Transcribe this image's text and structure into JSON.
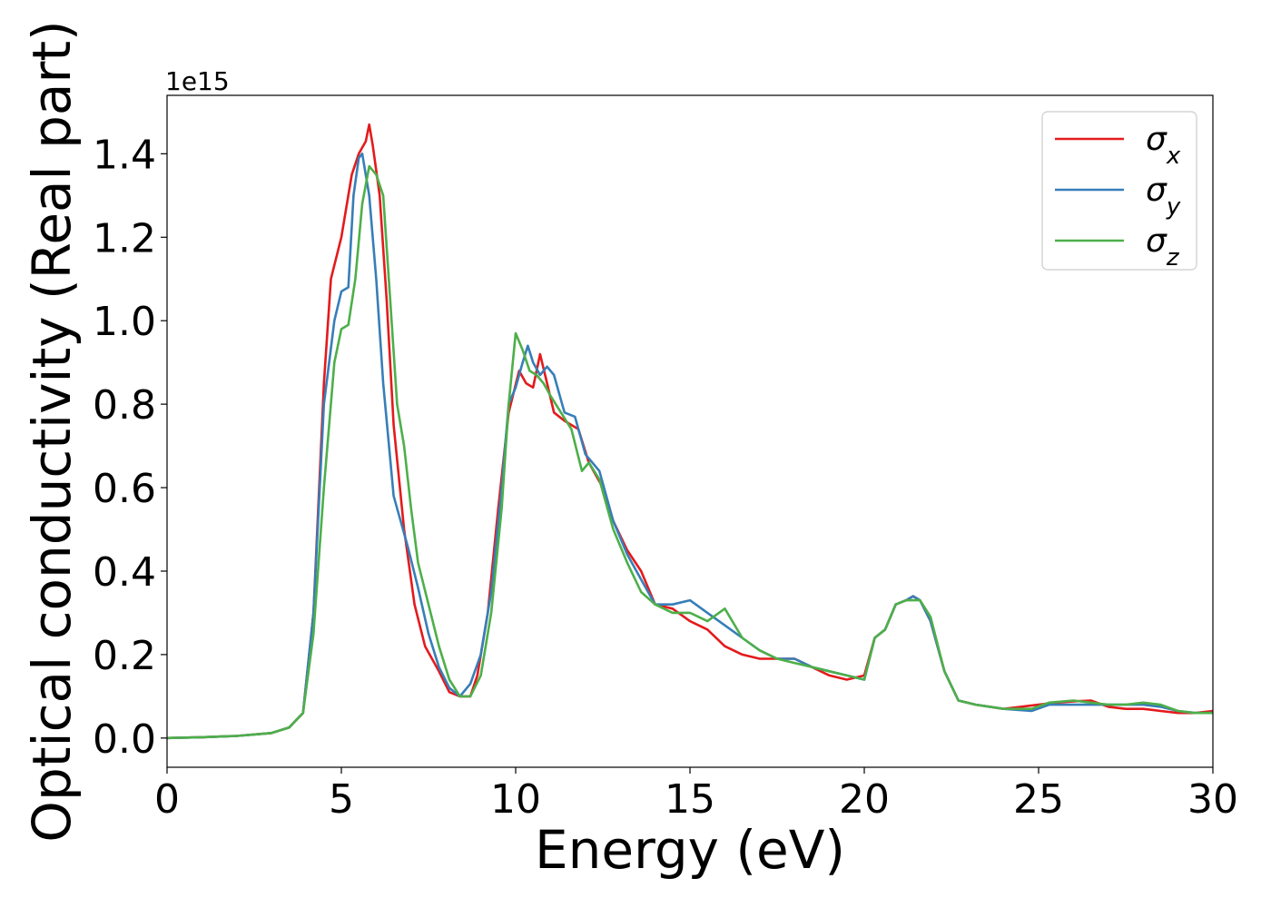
{
  "chart_data": {
    "type": "line",
    "xlabel": "Energy (eV)",
    "ylabel": "Optical conductivity (Real part)",
    "y_offset_text": "1e15",
    "xlim": [
      0,
      30
    ],
    "ylim": [
      -0.07,
      1.54
    ],
    "x_ticks": [
      0,
      5,
      10,
      15,
      20,
      25,
      30
    ],
    "x_tick_labels": [
      "0",
      "5",
      "10",
      "15",
      "20",
      "25",
      "30"
    ],
    "y_ticks": [
      0.0,
      0.2,
      0.4,
      0.6,
      0.8,
      1.0,
      1.2,
      1.4
    ],
    "y_tick_labels": [
      "0.0",
      "0.2",
      "0.4",
      "0.6",
      "0.8",
      "1.0",
      "1.2",
      "1.4"
    ],
    "grid": false,
    "legend_position": "top-right",
    "series": [
      {
        "name": "σx",
        "symbol": "σ",
        "subscript": "x",
        "color": "#e41a1c",
        "x": [
          0,
          1,
          2,
          3,
          3.5,
          3.9,
          4.2,
          4.5,
          4.7,
          5.0,
          5.3,
          5.5,
          5.7,
          5.8,
          5.9,
          6.1,
          6.3,
          6.5,
          6.8,
          7.1,
          7.4,
          7.8,
          8.1,
          8.4,
          8.7,
          8.9,
          9.2,
          9.5,
          9.8,
          10.1,
          10.3,
          10.5,
          10.7,
          10.9,
          11.1,
          11.4,
          11.8,
          12.1,
          12.5,
          12.8,
          13.2,
          13.6,
          14.0,
          14.5,
          15.0,
          15.5,
          16.0,
          16.5,
          17.0,
          17.5,
          18.0,
          18.5,
          19.0,
          19.5,
          20.0,
          20.3,
          20.6,
          20.9,
          21.2,
          21.4,
          21.6,
          21.9,
          22.3,
          22.7,
          23.2,
          24.0,
          25.0,
          25.5,
          26.0,
          26.5,
          27.0,
          27.5,
          28.0,
          28.5,
          29.0,
          29.5,
          30.0
        ],
        "values": [
          0.0,
          0.002,
          0.005,
          0.012,
          0.025,
          0.06,
          0.3,
          0.85,
          1.1,
          1.2,
          1.35,
          1.4,
          1.43,
          1.47,
          1.42,
          1.3,
          1.05,
          0.75,
          0.5,
          0.32,
          0.22,
          0.16,
          0.11,
          0.1,
          0.1,
          0.15,
          0.3,
          0.55,
          0.78,
          0.88,
          0.85,
          0.84,
          0.92,
          0.85,
          0.78,
          0.76,
          0.74,
          0.66,
          0.6,
          0.52,
          0.45,
          0.4,
          0.32,
          0.31,
          0.28,
          0.26,
          0.22,
          0.2,
          0.19,
          0.19,
          0.19,
          0.17,
          0.15,
          0.14,
          0.15,
          0.24,
          0.26,
          0.32,
          0.33,
          0.34,
          0.33,
          0.28,
          0.16,
          0.09,
          0.08,
          0.07,
          0.08,
          0.085,
          0.088,
          0.09,
          0.075,
          0.07,
          0.07,
          0.065,
          0.06,
          0.06,
          0.065
        ]
      },
      {
        "name": "σy",
        "symbol": "σ",
        "subscript": "y",
        "color": "#377eb8",
        "x": [
          0,
          1,
          2,
          3,
          3.5,
          3.9,
          4.2,
          4.5,
          4.8,
          5.0,
          5.2,
          5.35,
          5.5,
          5.6,
          5.8,
          6.0,
          6.2,
          6.5,
          6.7,
          6.9,
          7.2,
          7.5,
          7.8,
          8.1,
          8.4,
          8.7,
          9.0,
          9.3,
          9.6,
          9.8,
          10.0,
          10.2,
          10.35,
          10.5,
          10.7,
          10.9,
          11.1,
          11.4,
          11.7,
          12.0,
          12.4,
          12.8,
          13.2,
          13.6,
          14.0,
          14.5,
          15.0,
          15.5,
          16.0,
          16.5,
          17.0,
          17.5,
          18.0,
          18.5,
          19.0,
          19.5,
          20.0,
          20.3,
          20.6,
          20.9,
          21.2,
          21.4,
          21.6,
          21.9,
          22.3,
          22.7,
          23.2,
          24.0,
          24.8,
          25.3,
          26.0,
          26.5,
          27.0,
          27.5,
          28.0,
          28.5,
          29.0,
          29.5,
          30.0
        ],
        "values": [
          0.0,
          0.002,
          0.005,
          0.012,
          0.025,
          0.06,
          0.3,
          0.8,
          1.0,
          1.07,
          1.08,
          1.3,
          1.39,
          1.4,
          1.3,
          1.1,
          0.85,
          0.58,
          0.52,
          0.46,
          0.36,
          0.25,
          0.17,
          0.12,
          0.1,
          0.13,
          0.2,
          0.35,
          0.6,
          0.8,
          0.84,
          0.9,
          0.94,
          0.9,
          0.87,
          0.89,
          0.87,
          0.78,
          0.77,
          0.68,
          0.64,
          0.52,
          0.44,
          0.38,
          0.32,
          0.32,
          0.33,
          0.3,
          0.27,
          0.24,
          0.21,
          0.19,
          0.19,
          0.17,
          0.16,
          0.15,
          0.14,
          0.24,
          0.26,
          0.32,
          0.33,
          0.34,
          0.33,
          0.28,
          0.16,
          0.09,
          0.08,
          0.07,
          0.065,
          0.08,
          0.08,
          0.08,
          0.08,
          0.08,
          0.08,
          0.075,
          0.065,
          0.06,
          0.06
        ]
      },
      {
        "name": "σz",
        "symbol": "σ",
        "subscript": "z",
        "color": "#4daf4a",
        "x": [
          0,
          1,
          2,
          3,
          3.5,
          3.9,
          4.2,
          4.5,
          4.8,
          5.0,
          5.2,
          5.4,
          5.6,
          5.8,
          6.0,
          6.2,
          6.4,
          6.6,
          6.8,
          7.0,
          7.2,
          7.5,
          7.8,
          8.1,
          8.4,
          8.7,
          9.0,
          9.3,
          9.6,
          9.8,
          10.0,
          10.2,
          10.4,
          10.6,
          10.8,
          11.0,
          11.3,
          11.6,
          11.9,
          12.1,
          12.4,
          12.8,
          13.2,
          13.6,
          14.0,
          14.5,
          15.0,
          15.5,
          16.0,
          16.5,
          17.0,
          17.5,
          18.0,
          18.5,
          19.0,
          19.5,
          20.0,
          20.3,
          20.6,
          20.9,
          21.2,
          21.4,
          21.6,
          21.9,
          22.3,
          22.7,
          23.2,
          24.0,
          24.8,
          25.3,
          26.0,
          26.5,
          27.0,
          27.5,
          28.0,
          28.5,
          29.0,
          29.5,
          30.0
        ],
        "values": [
          0.0,
          0.002,
          0.005,
          0.012,
          0.025,
          0.06,
          0.25,
          0.6,
          0.9,
          0.98,
          0.99,
          1.1,
          1.28,
          1.37,
          1.35,
          1.3,
          1.05,
          0.8,
          0.7,
          0.55,
          0.42,
          0.32,
          0.22,
          0.14,
          0.1,
          0.1,
          0.15,
          0.3,
          0.55,
          0.8,
          0.97,
          0.93,
          0.88,
          0.87,
          0.85,
          0.82,
          0.78,
          0.74,
          0.64,
          0.66,
          0.62,
          0.5,
          0.42,
          0.35,
          0.32,
          0.3,
          0.3,
          0.28,
          0.31,
          0.24,
          0.21,
          0.19,
          0.18,
          0.17,
          0.16,
          0.15,
          0.14,
          0.24,
          0.26,
          0.32,
          0.33,
          0.33,
          0.33,
          0.29,
          0.16,
          0.09,
          0.08,
          0.07,
          0.07,
          0.085,
          0.09,
          0.085,
          0.08,
          0.08,
          0.085,
          0.08,
          0.065,
          0.06,
          0.06
        ]
      }
    ]
  }
}
